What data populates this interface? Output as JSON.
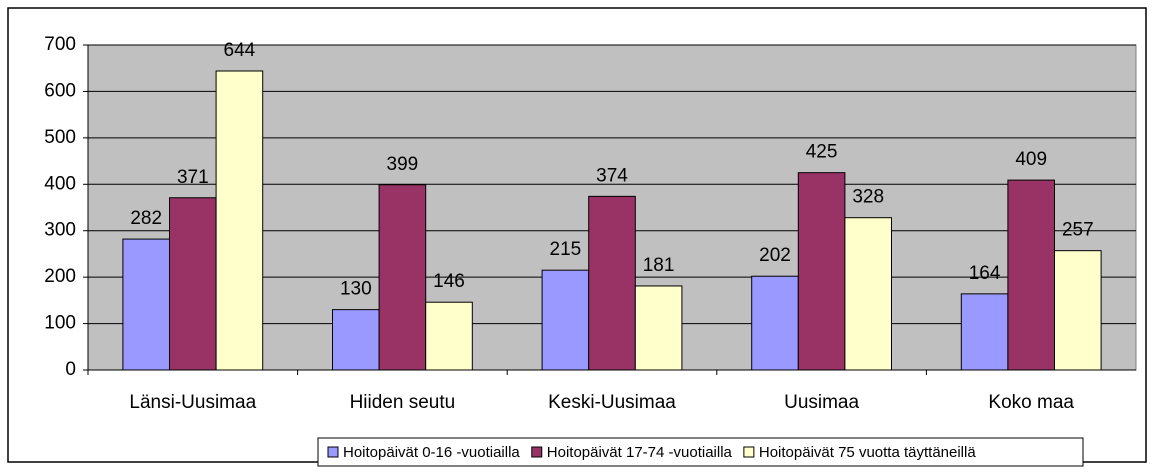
{
  "chart_data": {
    "type": "bar",
    "categories": [
      "Länsi-Uusimaa",
      "Hiiden seutu",
      "Keski-Uusimaa",
      "Uusimaa",
      "Koko maa"
    ],
    "series": [
      {
        "name": "Hoitopäivät 0-16 -vuotiailla",
        "color": "#9999ff",
        "values": [
          282,
          130,
          215,
          202,
          164
        ]
      },
      {
        "name": "Hoitopäivät 17-74 -vuotiailla",
        "color": "#993366",
        "values": [
          371,
          399,
          374,
          425,
          409
        ]
      },
      {
        "name": "Hoitopäivät 75 vuotta täyttäneillä",
        "color": "#ffffcc",
        "values": [
          644,
          146,
          181,
          328,
          257
        ]
      }
    ],
    "ylim": [
      0,
      700
    ],
    "yticks": [
      0,
      100,
      200,
      300,
      400,
      500,
      600,
      700
    ],
    "grid": true,
    "legend": "bottom",
    "plot_background": "#c0c0c0"
  }
}
